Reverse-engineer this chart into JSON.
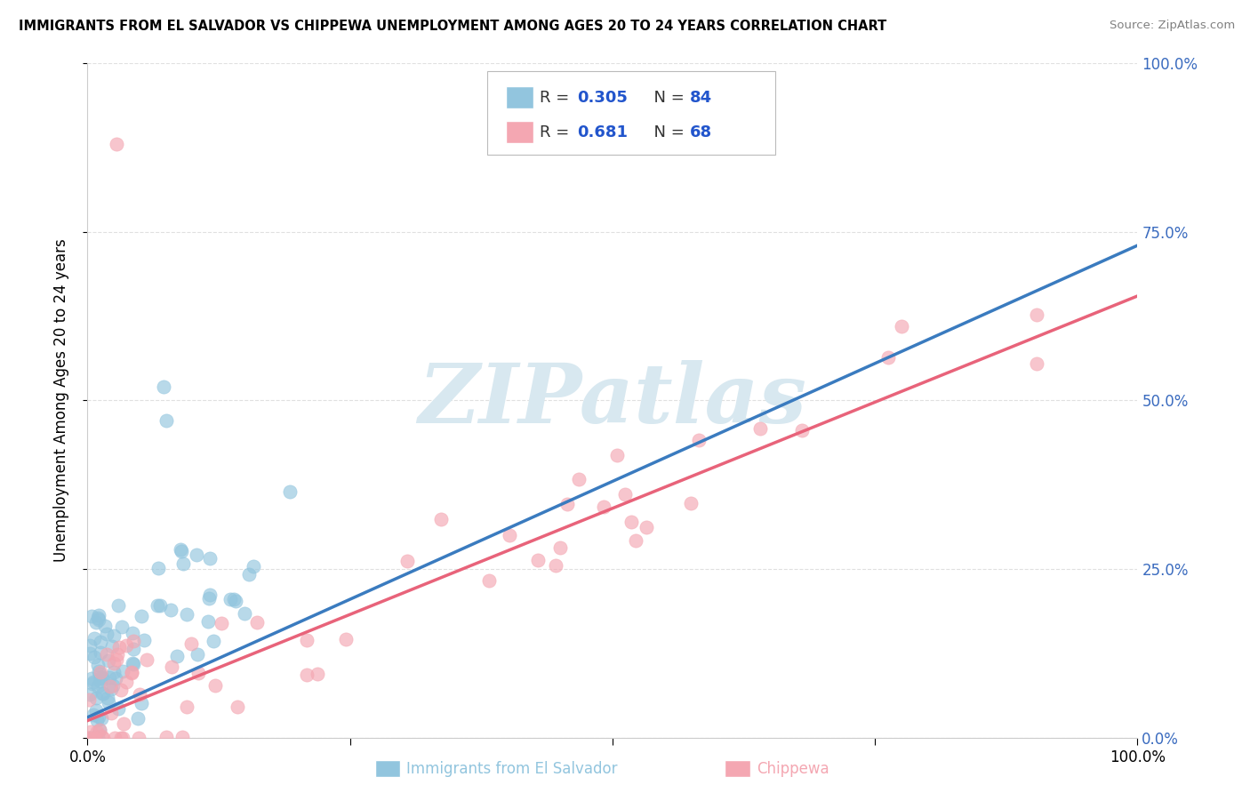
{
  "title": "IMMIGRANTS FROM EL SALVADOR VS CHIPPEWA UNEMPLOYMENT AMONG AGES 20 TO 24 YEARS CORRELATION CHART",
  "source": "Source: ZipAtlas.com",
  "ylabel": "Unemployment Among Ages 20 to 24 years",
  "right_ytick_labels": [
    "0.0%",
    "25.0%",
    "50.0%",
    "75.0%",
    "100.0%"
  ],
  "right_ytick_vals": [
    0.0,
    0.25,
    0.5,
    0.75,
    1.0
  ],
  "legend_r1": "R = 0.305",
  "legend_n1": "N = 84",
  "legend_r2": "R = 0.681",
  "legend_n2": "N = 68",
  "color_blue": "#92c5de",
  "color_pink": "#f4a7b2",
  "color_line_blue": "#3a7bbf",
  "color_line_pink": "#e8637a",
  "watermark_text": "ZIPatlas",
  "watermark_color": "#d8e8f0",
  "bottom_legend_blue": "Immigrants from El Salvador",
  "bottom_legend_pink": "Chippewa"
}
